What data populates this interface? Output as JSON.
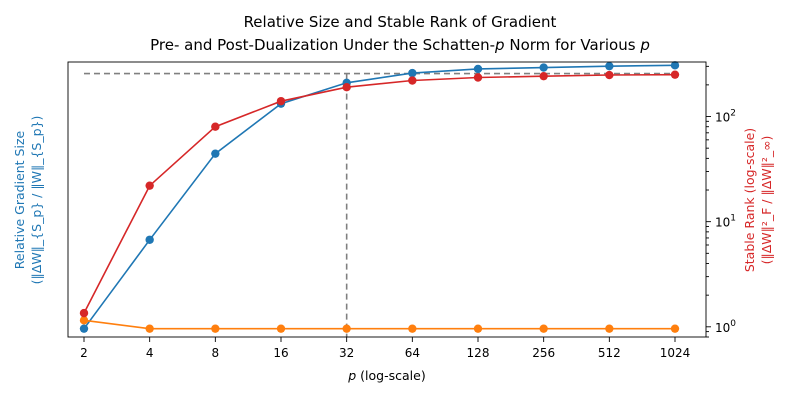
{
  "chart_data": {
    "type": "line",
    "title_line1": "Relative Size and Stable Rank of Gradient",
    "title_line2_prefix": "Pre- and Post-Dualization Under the Schatten-",
    "title_line2_var": "p",
    "title_line2_mid": " Norm for Various ",
    "title_line2_var2": "p",
    "xlabel_var": "p",
    "xlabel_suffix": " (log-scale)",
    "ylabel_left_line1": "Relative Gradient Size",
    "ylabel_left_line2": "(‖ΔW‖_{S_p} / ‖W‖_{S_p})",
    "ylabel_right_line1": "Stable Rank (log-scale)",
    "ylabel_right_line2": "(‖ΔW‖²_F / ‖ΔW‖²_∞)",
    "xscale": "log2",
    "x": [
      2,
      4,
      8,
      16,
      32,
      64,
      128,
      256,
      512,
      1024
    ],
    "x_tick_labels": [
      "2",
      "4",
      "8",
      "16",
      "32",
      "64",
      "128",
      "256",
      "512",
      "1024"
    ],
    "left_axis": {
      "ticks_shown": false,
      "ylim": [
        0.97,
        1.96
      ]
    },
    "right_axis": {
      "scale": "log",
      "ylim": [
        0.8,
        330
      ],
      "tick_labels": [
        {
          "value": 1,
          "base": "10",
          "exp": "0"
        },
        {
          "value": 10,
          "base": "10",
          "exp": "1"
        },
        {
          "value": 100,
          "base": "10",
          "exp": "2"
        }
      ]
    },
    "reference_lines": {
      "horizontal_value": 256,
      "vertical_x": 32,
      "style": "dashed",
      "color": "#808080"
    },
    "series": [
      {
        "axis": "left",
        "color": "#1f77b4",
        "values": [
          1.0,
          1.32,
          1.63,
          1.81,
          1.885,
          1.92,
          1.935,
          1.94,
          1.945,
          1.948
        ]
      },
      {
        "axis": "left",
        "color": "#ff7f0e",
        "values": [
          1.03,
          1.0,
          1.0,
          1.0,
          1.0,
          1.0,
          1.0,
          1.0,
          1.0,
          1.0
        ]
      },
      {
        "axis": "right",
        "color": "#d62728",
        "values": [
          1.35,
          22,
          80,
          140,
          190,
          220,
          235,
          242,
          248,
          250
        ]
      }
    ]
  }
}
